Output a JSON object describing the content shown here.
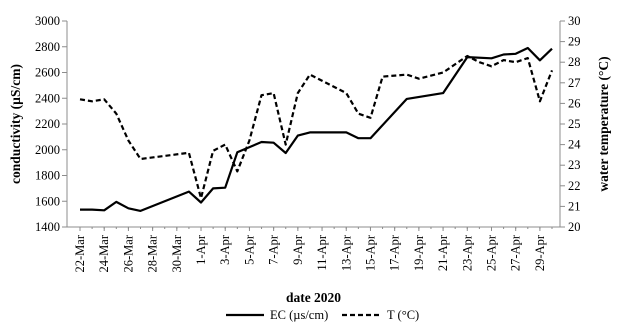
{
  "chart_data": {
    "type": "line",
    "xlabel": "date 2020",
    "ylabel_left": "conductivity (µS/cm)",
    "ylabel_right": "water temperature (°C)",
    "x_tick_labels": [
      "22-Mar",
      "24-Mar",
      "26-Mar",
      "28-Mar",
      "30-Mar",
      "1-Apr",
      "3-Apr",
      "5-Apr",
      "7-Apr",
      "9-Apr",
      "11-Apr",
      "13-Apr",
      "15-Apr",
      "17-Apr",
      "19-Apr",
      "21-Apr",
      "23-Apr",
      "25-Apr",
      "27-Apr",
      "29-Apr"
    ],
    "x_range": [
      "2020-03-22",
      "2020-04-30"
    ],
    "y_left": {
      "min": 1400,
      "max": 3000,
      "step": 200
    },
    "y_right": {
      "min": 20,
      "max": 30,
      "step": 1
    },
    "grid": false,
    "legend_position": "bottom-center",
    "series": [
      {
        "name": "EC (µs/cm)",
        "axis": "left",
        "style": "solid",
        "color": "#000000",
        "points": [
          [
            "2020-03-22",
            1535
          ],
          [
            "2020-03-23",
            1535
          ],
          [
            "2020-03-24",
            1530
          ],
          [
            "2020-03-25",
            1595
          ],
          [
            "2020-03-26",
            1545
          ],
          [
            "2020-03-27",
            1525
          ],
          [
            "2020-03-31",
            1675
          ],
          [
            "2020-04-01",
            1590
          ],
          [
            "2020-04-02",
            1700
          ],
          [
            "2020-04-03",
            1705
          ],
          [
            "2020-04-04",
            1980
          ],
          [
            "2020-04-06",
            2060
          ],
          [
            "2020-04-07",
            2055
          ],
          [
            "2020-04-08",
            1975
          ],
          [
            "2020-04-09",
            2110
          ],
          [
            "2020-04-10",
            2135
          ],
          [
            "2020-04-13",
            2135
          ],
          [
            "2020-04-14",
            2090
          ],
          [
            "2020-04-15",
            2090
          ],
          [
            "2020-04-18",
            2395
          ],
          [
            "2020-04-21",
            2440
          ],
          [
            "2020-04-23",
            2720
          ],
          [
            "2020-04-25",
            2710
          ],
          [
            "2020-04-26",
            2740
          ],
          [
            "2020-04-27",
            2745
          ],
          [
            "2020-04-28",
            2790
          ],
          [
            "2020-04-29",
            2695
          ],
          [
            "2020-04-30",
            2785
          ]
        ]
      },
      {
        "name": "T (°C)",
        "axis": "right",
        "style": "dashed",
        "color": "#000000",
        "points": [
          [
            "2020-03-22",
            26.2
          ],
          [
            "2020-03-23",
            26.1
          ],
          [
            "2020-03-24",
            26.2
          ],
          [
            "2020-03-25",
            25.5
          ],
          [
            "2020-03-26",
            24.2
          ],
          [
            "2020-03-27",
            23.3
          ],
          [
            "2020-03-31",
            23.6
          ],
          [
            "2020-04-01",
            21.4
          ],
          [
            "2020-04-02",
            23.7
          ],
          [
            "2020-04-03",
            24.0
          ],
          [
            "2020-04-04",
            22.7
          ],
          [
            "2020-04-05",
            24.2
          ],
          [
            "2020-04-06",
            26.4
          ],
          [
            "2020-04-07",
            26.5
          ],
          [
            "2020-04-08",
            24.0
          ],
          [
            "2020-04-09",
            26.5
          ],
          [
            "2020-04-10",
            27.4
          ],
          [
            "2020-04-13",
            26.5
          ],
          [
            "2020-04-14",
            25.5
          ],
          [
            "2020-04-15",
            25.3
          ],
          [
            "2020-04-16",
            27.3
          ],
          [
            "2020-04-18",
            27.4
          ],
          [
            "2020-04-19",
            27.2
          ],
          [
            "2020-04-21",
            27.5
          ],
          [
            "2020-04-23",
            28.3
          ],
          [
            "2020-04-24",
            28.0
          ],
          [
            "2020-04-25",
            27.8
          ],
          [
            "2020-04-26",
            28.1
          ],
          [
            "2020-04-27",
            28.0
          ],
          [
            "2020-04-28",
            28.2
          ],
          [
            "2020-04-29",
            26.1
          ],
          [
            "2020-04-30",
            27.6
          ]
        ]
      }
    ]
  }
}
